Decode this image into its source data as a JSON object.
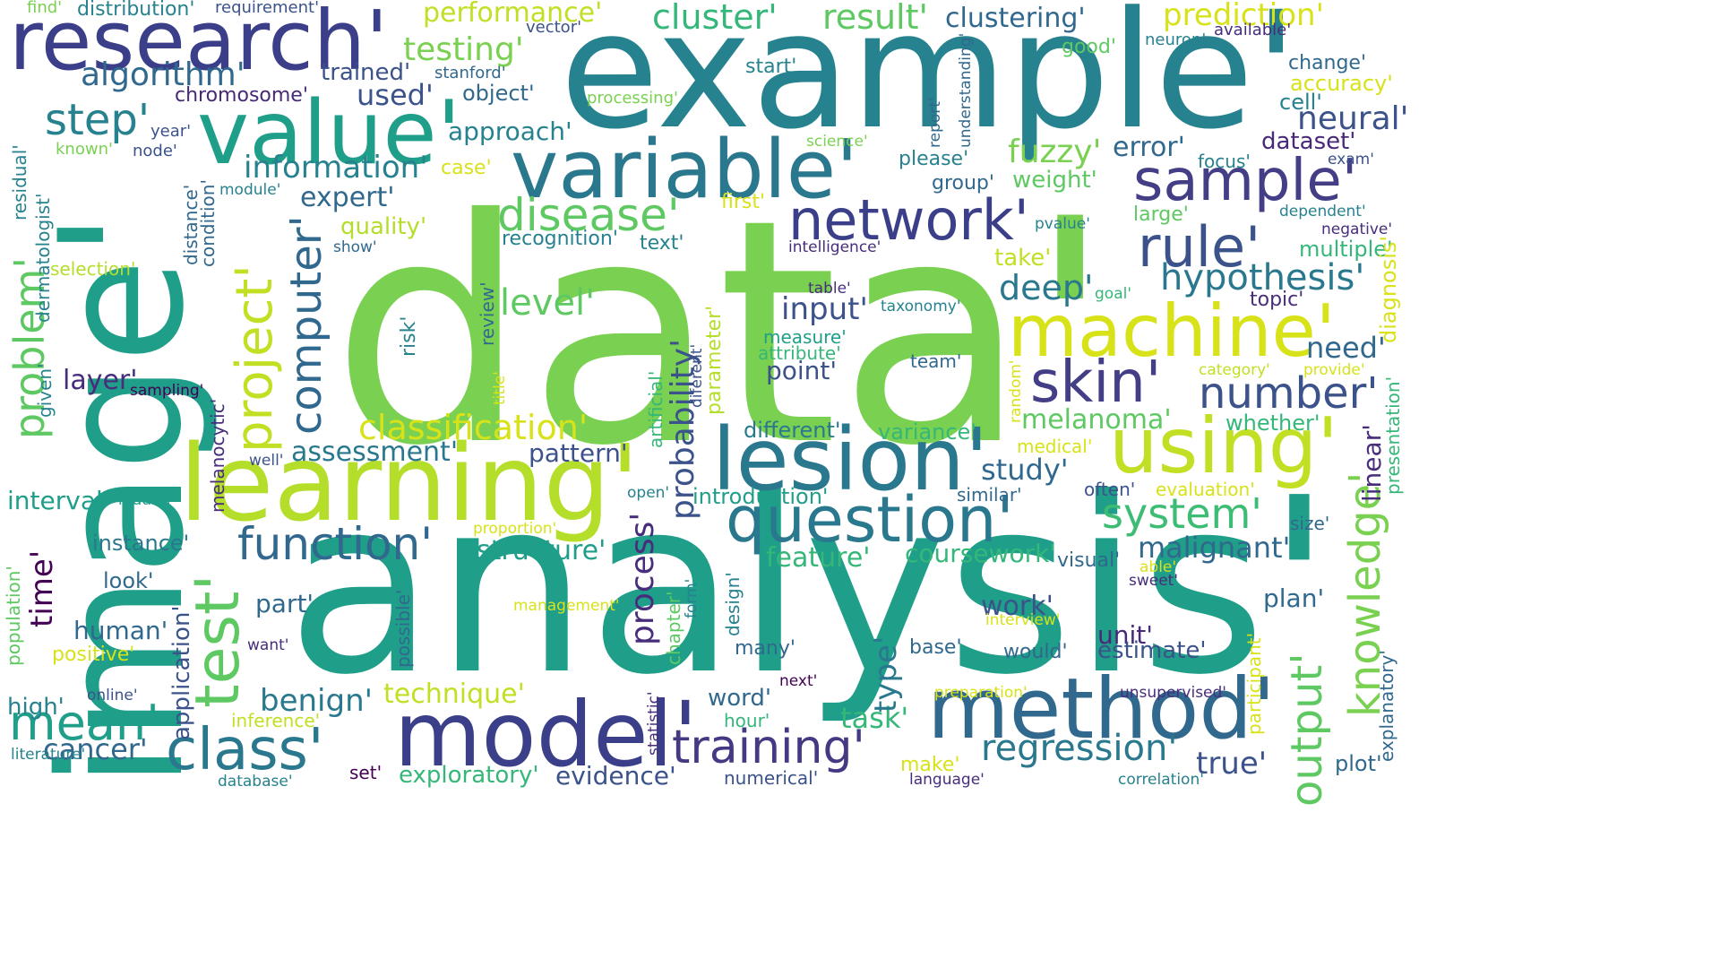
{
  "palette": {
    "purple": "#440154",
    "indigo": "#3b3f8a",
    "blue": "#31688e",
    "teal": "#26828e",
    "green": "#1f9e89",
    "lime": "#7ad151",
    "yellow": "#d8e219"
  },
  "words": [
    {
      "text": "data'",
      "color": "#7ad151"
    },
    {
      "text": "analysis'",
      "color": "#1f9e89"
    },
    {
      "text": "example'",
      "color": "#26828e"
    },
    {
      "text": "image'",
      "color": "#1f9e89"
    },
    {
      "text": "learning'",
      "color": "#b5de2b"
    },
    {
      "text": "value'",
      "color": "#1f9e89"
    },
    {
      "text": "research'",
      "color": "#3b3f8a"
    },
    {
      "text": "variable'",
      "color": "#2a788e"
    },
    {
      "text": "model'",
      "color": "#3b3f8a"
    },
    {
      "text": "method'",
      "color": "#31688e"
    },
    {
      "text": "lesion'",
      "color": "#2a788e"
    },
    {
      "text": "question'",
      "color": "#2a788e"
    },
    {
      "text": "using'",
      "color": "#c2df23"
    },
    {
      "text": "machine'",
      "color": "#d8e219"
    },
    {
      "text": "network'",
      "color": "#3b3f8a"
    },
    {
      "text": "sample'",
      "color": "#433e85"
    },
    {
      "text": "skin'",
      "color": "#433e85"
    },
    {
      "text": "rule'",
      "color": "#3b528b"
    },
    {
      "text": "disease'",
      "color": "#5ec962"
    },
    {
      "text": "class'",
      "color": "#2a788e"
    },
    {
      "text": "training'",
      "color": "#443983"
    },
    {
      "text": "function'",
      "color": "#31688e"
    },
    {
      "text": "project'",
      "color": "#c2df23"
    },
    {
      "text": "test'",
      "color": "#5ec962"
    },
    {
      "text": "computer'",
      "color": "#31688e"
    },
    {
      "text": "knowledge'",
      "color": "#7ad151"
    },
    {
      "text": "number'",
      "color": "#3b528b"
    },
    {
      "text": "output'",
      "color": "#5ec962"
    },
    {
      "text": "system'",
      "color": "#3dbc74"
    },
    {
      "text": "mean'",
      "color": "#1f9e89"
    },
    {
      "text": "time'",
      "color": "#440154"
    },
    {
      "text": "problem'",
      "color": "#5ec962"
    },
    {
      "text": "step'",
      "color": "#26828e"
    },
    {
      "text": "classification'",
      "color": "#d8e219"
    },
    {
      "text": "regression'",
      "color": "#2a788e"
    },
    {
      "text": "probability'",
      "color": "#3b528b"
    },
    {
      "text": "process'",
      "color": "#472d7b"
    },
    {
      "text": "hypothesis'",
      "color": "#2a788e"
    },
    {
      "text": "deep'",
      "color": "#2a788e"
    },
    {
      "text": "level'",
      "color": "#5ec962"
    },
    {
      "text": "information'",
      "color": "#26828e"
    },
    {
      "text": "algorithm'",
      "color": "#31688e"
    },
    {
      "text": "testing'",
      "color": "#7ad151"
    },
    {
      "text": "performance'",
      "color": "#c2df23"
    },
    {
      "text": "cluster'",
      "color": "#35b779"
    },
    {
      "text": "result'",
      "color": "#5ec962"
    },
    {
      "text": "prediction'",
      "color": "#d8e219"
    },
    {
      "text": "clustering'",
      "color": "#31688e"
    },
    {
      "text": "neural'",
      "color": "#3b528b"
    },
    {
      "text": "input'",
      "color": "#3b528b"
    },
    {
      "text": "fuzzy'",
      "color": "#7ad151"
    },
    {
      "text": "error'",
      "color": "#31688e"
    },
    {
      "text": "dataset'",
      "color": "#482878"
    },
    {
      "text": "benign'",
      "color": "#2a788e"
    },
    {
      "text": "assessment'",
      "color": "#2a788e"
    },
    {
      "text": "study'",
      "color": "#31688e"
    },
    {
      "text": "melanoma'",
      "color": "#5ec962"
    },
    {
      "text": "structure'",
      "color": "#1f9e89"
    },
    {
      "text": "feature'",
      "color": "#35b779"
    },
    {
      "text": "coursework'",
      "color": "#35b779"
    },
    {
      "text": "malignant'",
      "color": "#31688e"
    },
    {
      "text": "task'",
      "color": "#35b779"
    },
    {
      "text": "type'",
      "color": "#2a788e"
    },
    {
      "text": "technique'",
      "color": "#c2df23"
    },
    {
      "text": "expert'",
      "color": "#31688e"
    },
    {
      "text": "quality'",
      "color": "#b5de2b"
    },
    {
      "text": "approach'",
      "color": "#26828e"
    },
    {
      "text": "used'",
      "color": "#3b528b"
    },
    {
      "text": "object'",
      "color": "#31688e"
    },
    {
      "text": "trained'",
      "color": "#3b528b"
    },
    {
      "text": "cancer'",
      "color": "#31688e"
    },
    {
      "text": "exploratory'",
      "color": "#35b779"
    },
    {
      "text": "evidence'",
      "color": "#3b528b"
    },
    {
      "text": "true'",
      "color": "#3b528b"
    },
    {
      "text": "work'",
      "color": "#3b528b"
    },
    {
      "text": "unit'",
      "color": "#482878"
    },
    {
      "text": "estimate'",
      "color": "#3b528b"
    },
    {
      "text": "pattern'",
      "color": "#3b528b"
    },
    {
      "text": "point'",
      "color": "#3b528b"
    },
    {
      "text": "layer'",
      "color": "#472d7b"
    },
    {
      "text": "human'",
      "color": "#31688e"
    },
    {
      "text": "instance'",
      "color": "#2a788e"
    },
    {
      "text": "look'",
      "color": "#31688e"
    },
    {
      "text": "part'",
      "color": "#31688e"
    },
    {
      "text": "word'",
      "color": "#31688e"
    },
    {
      "text": "interval'",
      "color": "#1f9e89"
    },
    {
      "text": "high'",
      "color": "#26828e"
    },
    {
      "text": "need'",
      "color": "#31688e"
    },
    {
      "text": "plan'",
      "color": "#31688e"
    },
    {
      "text": "plot'",
      "color": "#31688e"
    },
    {
      "text": "linear'",
      "color": "#472d7b"
    },
    {
      "text": "take'",
      "color": "#c2df23"
    },
    {
      "text": "multiple'",
      "color": "#35b779"
    },
    {
      "text": "large'",
      "color": "#5ec962"
    },
    {
      "text": "whether'",
      "color": "#35b779"
    },
    {
      "text": "variance'",
      "color": "#35b779"
    },
    {
      "text": "different'",
      "color": "#2a788e"
    },
    {
      "text": "introduction'",
      "color": "#1f9e89"
    },
    {
      "text": "recognition'",
      "color": "#26828e"
    },
    {
      "text": "text'",
      "color": "#26828e"
    },
    {
      "text": "weight'",
      "color": "#5ec962"
    },
    {
      "text": "group'",
      "color": "#31688e"
    },
    {
      "text": "please'",
      "color": "#26828e"
    },
    {
      "text": "focus'",
      "color": "#26828e"
    },
    {
      "text": "cell'",
      "color": "#26828e"
    },
    {
      "text": "change'",
      "color": "#31688e"
    },
    {
      "text": "accuracy'",
      "color": "#d8e219"
    },
    {
      "text": "good'",
      "color": "#5ec962"
    },
    {
      "text": "start'",
      "color": "#26828e"
    },
    {
      "text": "processing'",
      "color": "#7ad151"
    },
    {
      "text": "stanford'",
      "color": "#31688e"
    },
    {
      "text": "chromosome'",
      "color": "#482878"
    },
    {
      "text": "case'",
      "color": "#d8e219"
    },
    {
      "text": "first'",
      "color": "#d8e219"
    },
    {
      "text": "vector'",
      "color": "#3b528b"
    },
    {
      "text": "requirement'",
      "color": "#3b528b"
    },
    {
      "text": "distribution'",
      "color": "#26828e"
    },
    {
      "text": "find'",
      "color": "#7ad151"
    },
    {
      "text": "neuron'",
      "color": "#26828e"
    },
    {
      "text": "available'",
      "color": "#472d7b"
    },
    {
      "text": "year'",
      "color": "#3b528b"
    },
    {
      "text": "node'",
      "color": "#3b528b"
    },
    {
      "text": "known'",
      "color": "#7ad151"
    },
    {
      "text": "science'",
      "color": "#7ad151"
    },
    {
      "text": "exam'",
      "color": "#3b528b"
    },
    {
      "text": "dependent'",
      "color": "#26828e"
    },
    {
      "text": "negative'",
      "color": "#472d7b"
    },
    {
      "text": "pvalue'",
      "color": "#26828e"
    },
    {
      "text": "intelligence'",
      "color": "#472d7b"
    },
    {
      "text": "module'",
      "color": "#26828e"
    },
    {
      "text": "selection'",
      "color": "#b5de2b"
    },
    {
      "text": "show'",
      "color": "#31688e"
    },
    {
      "text": "table'",
      "color": "#472d7b"
    },
    {
      "text": "goal'",
      "color": "#35b779"
    },
    {
      "text": "topic'",
      "color": "#472d7b"
    },
    {
      "text": "taxonomy'",
      "color": "#26828e"
    },
    {
      "text": "measure'",
      "color": "#1f9e89"
    },
    {
      "text": "attribute'",
      "color": "#35b779"
    },
    {
      "text": "team'",
      "color": "#31688e"
    },
    {
      "text": "category'",
      "color": "#c2df23"
    },
    {
      "text": "provide'",
      "color": "#d8e219"
    },
    {
      "text": "sampling'",
      "color": "#440154"
    },
    {
      "text": "medical'",
      "color": "#d8e219"
    },
    {
      "text": "well'",
      "color": "#3b528b"
    },
    {
      "text": "hidden'",
      "color": "#1f9e89"
    },
    {
      "text": "open'",
      "color": "#26828e"
    },
    {
      "text": "similar'",
      "color": "#31688e"
    },
    {
      "text": "often'",
      "color": "#3b528b"
    },
    {
      "text": "evaluation'",
      "color": "#d8e219"
    },
    {
      "text": "proportion'",
      "color": "#d8e219"
    },
    {
      "text": "size'",
      "color": "#31688e"
    },
    {
      "text": "visual'",
      "color": "#31688e"
    },
    {
      "text": "able'",
      "color": "#d8e219"
    },
    {
      "text": "sweet'",
      "color": "#472d7b"
    },
    {
      "text": "management'",
      "color": "#d8e219"
    },
    {
      "text": "interview'",
      "color": "#d8e219"
    },
    {
      "text": "positive'",
      "color": "#d8e219"
    },
    {
      "text": "want'",
      "color": "#472d7b"
    },
    {
      "text": "many'",
      "color": "#31688e"
    },
    {
      "text": "base'",
      "color": "#31688e"
    },
    {
      "text": "would'",
      "color": "#31688e"
    },
    {
      "text": "next'",
      "color": "#440154"
    },
    {
      "text": "online'",
      "color": "#3b528b"
    },
    {
      "text": "hour'",
      "color": "#35b779"
    },
    {
      "text": "preparation'",
      "color": "#d8e219"
    },
    {
      "text": "unsupervised'",
      "color": "#472d7b"
    },
    {
      "text": "inference'",
      "color": "#c2df23"
    },
    {
      "text": "set'",
      "color": "#440154"
    },
    {
      "text": "make'",
      "color": "#d8e219"
    },
    {
      "text": "literature'",
      "color": "#26828e"
    },
    {
      "text": "database'",
      "color": "#26828e"
    },
    {
      "text": "numerical'",
      "color": "#3b528b"
    },
    {
      "text": "language'",
      "color": "#472d7b"
    },
    {
      "text": "correlation'",
      "color": "#26828e"
    },
    {
      "text": "residual'",
      "color": "#26828e"
    },
    {
      "text": "dermatologist'",
      "color": "#26828e"
    },
    {
      "text": "distance'",
      "color": "#31688e"
    },
    {
      "text": "condition'",
      "color": "#31688e"
    },
    {
      "text": "given'",
      "color": "#26828e"
    },
    {
      "text": "risk'",
      "color": "#26828e"
    },
    {
      "text": "review'",
      "color": "#31688e"
    },
    {
      "text": "title'",
      "color": "#d8e219"
    },
    {
      "text": "artificial'",
      "color": "#35b779"
    },
    {
      "text": "diferent'",
      "color": "#3b528b"
    },
    {
      "text": "parameter'",
      "color": "#b5de2b"
    },
    {
      "text": "melanocytic'",
      "color": "#472d7b"
    },
    {
      "text": "application'",
      "color": "#3b528b"
    },
    {
      "text": "population'",
      "color": "#5ec962"
    },
    {
      "text": "possible'",
      "color": "#31688e"
    },
    {
      "text": "chapter'",
      "color": "#5ec962"
    },
    {
      "text": "form'",
      "color": "#26828e"
    },
    {
      "text": "design'",
      "color": "#26828e"
    },
    {
      "text": "statistic'",
      "color": "#472d7b"
    },
    {
      "text": "participant'",
      "color": "#d8e219"
    },
    {
      "text": "explanatory'",
      "color": "#31688e"
    },
    {
      "text": "presentation'",
      "color": "#35b779"
    },
    {
      "text": "diagnosis'",
      "color": "#d8e219"
    },
    {
      "text": "random'",
      "color": "#d8e219"
    },
    {
      "text": "report'",
      "color": "#31688e"
    },
    {
      "text": "understanding'",
      "color": "#31688e"
    }
  ]
}
